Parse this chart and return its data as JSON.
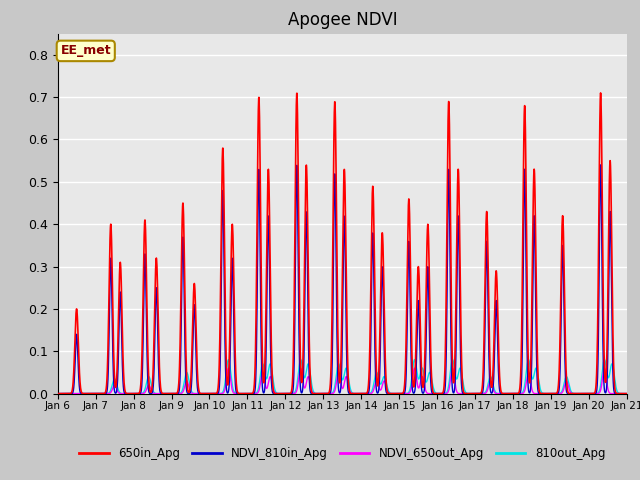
{
  "title": "Apogee NDVI",
  "ylim": [
    0.0,
    0.85
  ],
  "yticks": [
    0.0,
    0.1,
    0.2,
    0.3,
    0.4,
    0.5,
    0.6,
    0.7,
    0.8
  ],
  "fig_bg_color": "#c8c8c8",
  "plot_bg_color": "#e8e8e8",
  "line_colors": {
    "650in_Apg": "#ff0000",
    "NDVI_810in_Apg": "#0000cc",
    "NDVI_650out_Apg": "#ff00ff",
    "810out_Apg": "#00e5e5"
  },
  "annotation_text": "EE_met",
  "annotation_bg": "#ffffcc",
  "annotation_border": "#aa8800",
  "annotation_text_color": "#880000",
  "x_labels": [
    "Jan 6",
    "Jan 7",
    "Jan 8",
    "Jan 9",
    "Jan 10",
    "Jan 11",
    "Jan 12",
    "Jan 13",
    "Jan 14",
    "Jan 15",
    "Jan 16",
    "Jan 17",
    "Jan 18",
    "Jan 19",
    "Jan 20",
    "Jan 21"
  ]
}
